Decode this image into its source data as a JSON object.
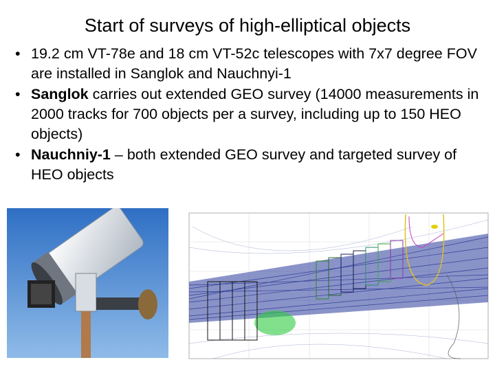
{
  "title": "Start of surveys of high-elliptical objects",
  "bullets": [
    {
      "text": "19.2 cm VT-78e and 18 cm VT-52c telescopes with 7x7 degree FOV are installed in Sanglok and Nauchnyi-1"
    },
    {
      "bold": "Sanglok",
      "text": "carries out extended GEO survey (14000 measurements in 2000 tracks for 700 objects per a survey, including up to 150 HEO objects)"
    },
    {
      "bold": "Nauchniy-1",
      "text": "– both extended GEO survey and targeted survey of HEO objects"
    }
  ]
}
